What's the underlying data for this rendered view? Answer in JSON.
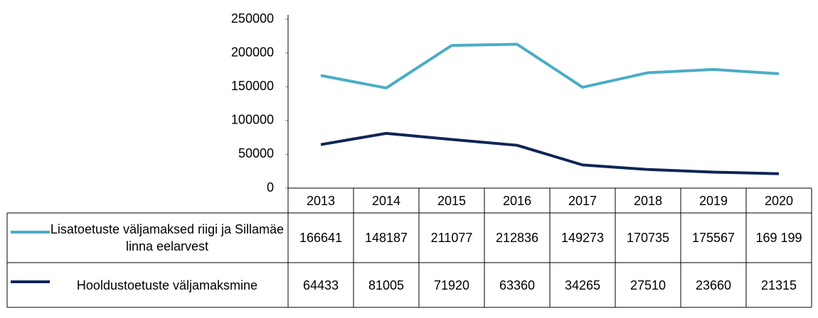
{
  "chart_data": {
    "type": "line",
    "categories": [
      "2013",
      "2014",
      "2015",
      "2016",
      "2017",
      "2018",
      "2019",
      "2020"
    ],
    "series": [
      {
        "name": "Lisatoetuste väljamaksed riigi ja Sillamäe linna eelarvest",
        "color": "#4bacc6",
        "values": [
          166641,
          148187,
          211077,
          212836,
          149273,
          170735,
          175567,
          169199
        ],
        "value_labels": [
          "166641",
          "148187",
          "211077",
          "212836",
          "149273",
          "170735",
          "175567",
          "169 199"
        ]
      },
      {
        "name": "Hooldustoetuste väljamaksmine",
        "color": "#0f2557",
        "values": [
          64433,
          81005,
          71920,
          63360,
          34265,
          27510,
          23660,
          21315
        ]
      }
    ],
    "ylim": [
      0,
      250000
    ],
    "yticks": [
      0,
      50000,
      100000,
      150000,
      200000,
      250000
    ],
    "grid": false
  }
}
